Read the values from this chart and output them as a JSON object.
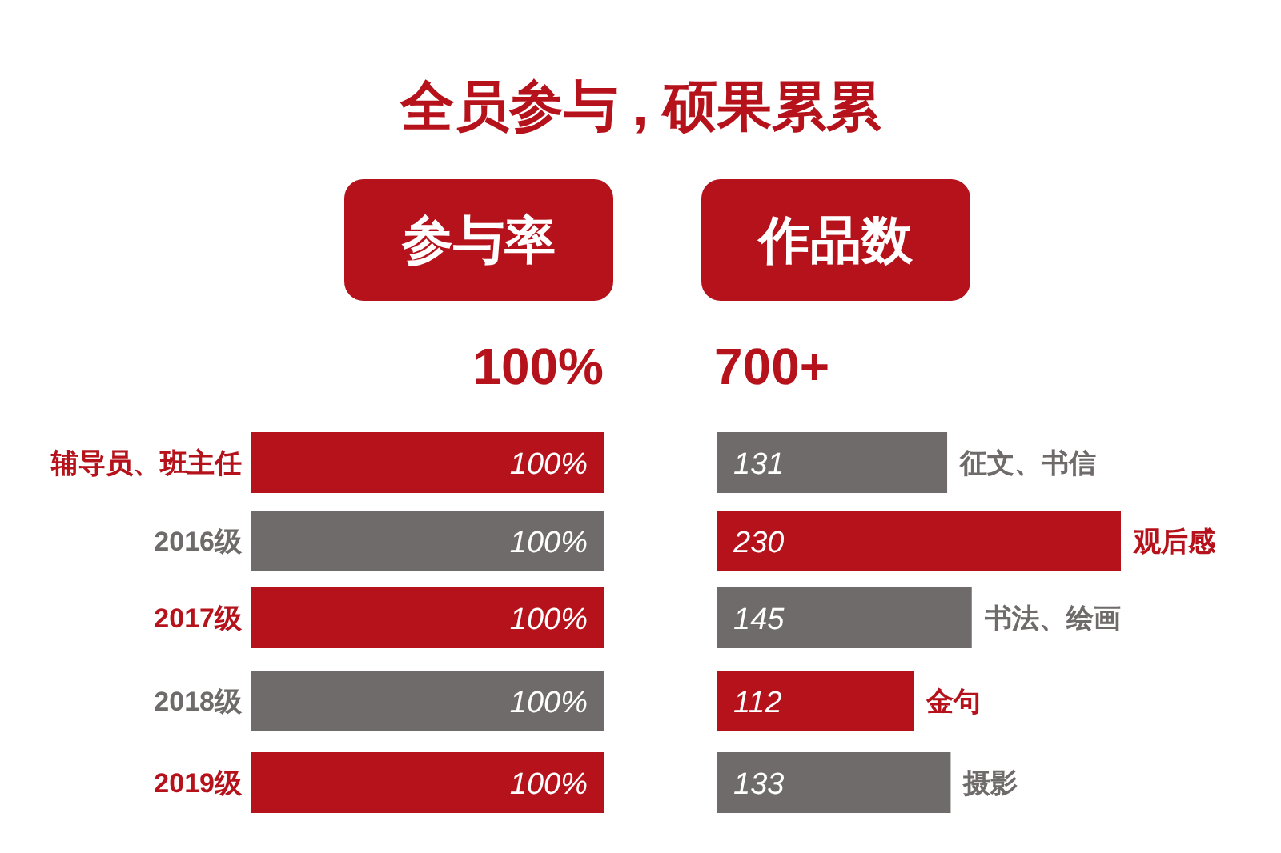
{
  "chart_data": [
    {
      "type": "bar",
      "orientation": "horizontal",
      "title": "参与率",
      "subtitle": "100%",
      "annotations": [
        "全员参与 , 硕果累累"
      ],
      "categories": [
        "辅导员、班主任",
        "2016级",
        "2017级",
        "2018级",
        "2019级"
      ],
      "values": [
        100,
        100,
        100,
        100,
        100
      ],
      "value_labels": [
        "100%",
        "100%",
        "100%",
        "100%",
        "100%"
      ],
      "colors": [
        "#b5121b",
        "#6f6b6a",
        "#b5121b",
        "#6f6b6a",
        "#b5121b"
      ]
    },
    {
      "type": "bar",
      "orientation": "horizontal",
      "title": "作品数",
      "subtitle": "700+",
      "categories": [
        "征文、书信",
        "观后感",
        "书法、绘画",
        "金句",
        "摄影"
      ],
      "values": [
        131,
        230,
        145,
        112,
        133
      ],
      "data_labels": true,
      "colors": [
        "#6f6b6a",
        "#b5121b",
        "#6f6b6a",
        "#b5121b",
        "#6f6b6a"
      ]
    }
  ]
}
